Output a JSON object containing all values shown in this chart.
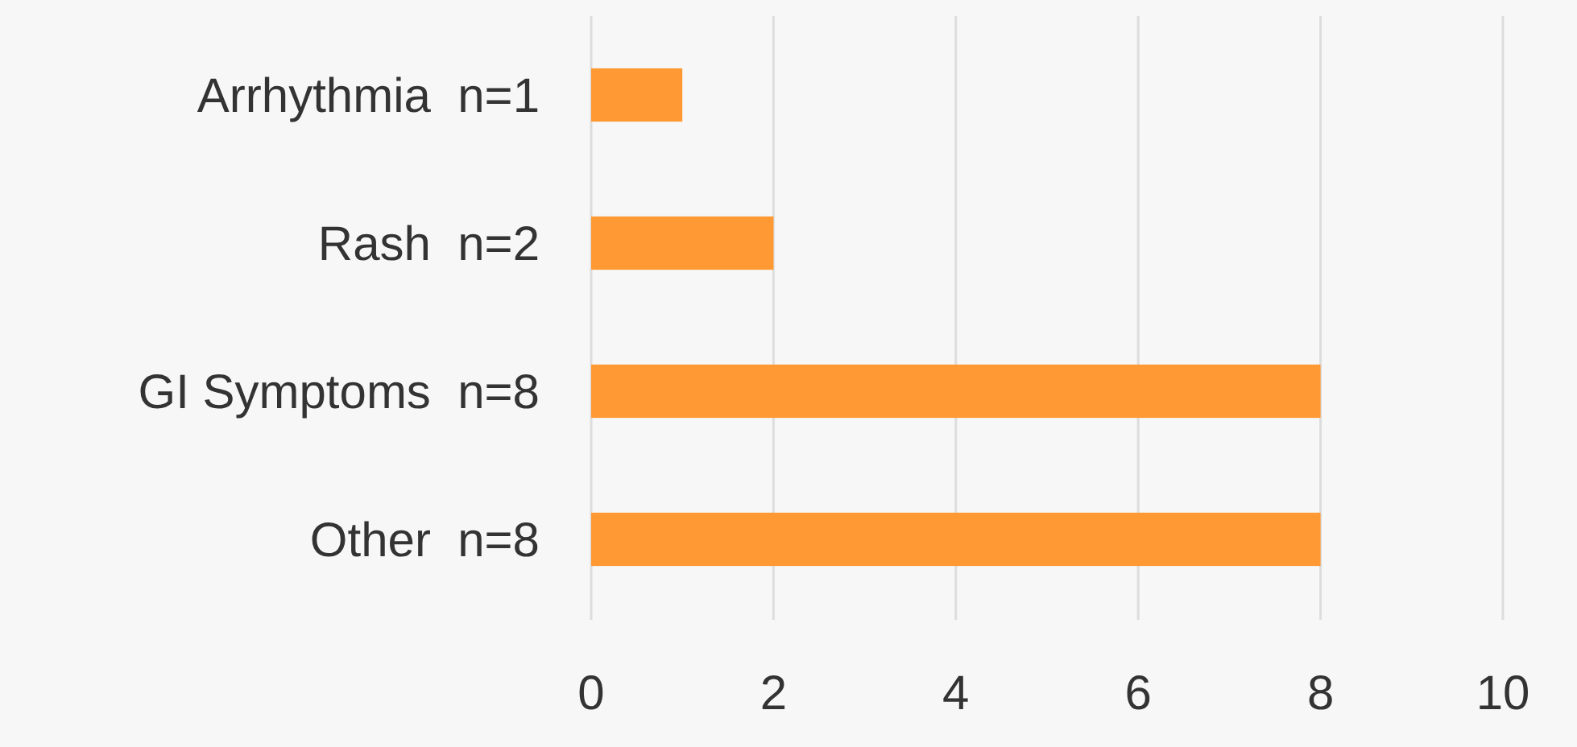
{
  "chart_data": {
    "type": "bar",
    "orientation": "horizontal",
    "categories": [
      "Arrhythmia  n=1",
      "Rash  n=2",
      "GI Symptoms  n=8",
      "Other  n=8"
    ],
    "values": [
      1,
      2,
      8,
      8
    ],
    "color": "#ff9933",
    "xlim": [
      0,
      10
    ],
    "xticks": [
      0,
      2,
      4,
      6,
      8,
      10
    ],
    "grid": "x"
  }
}
